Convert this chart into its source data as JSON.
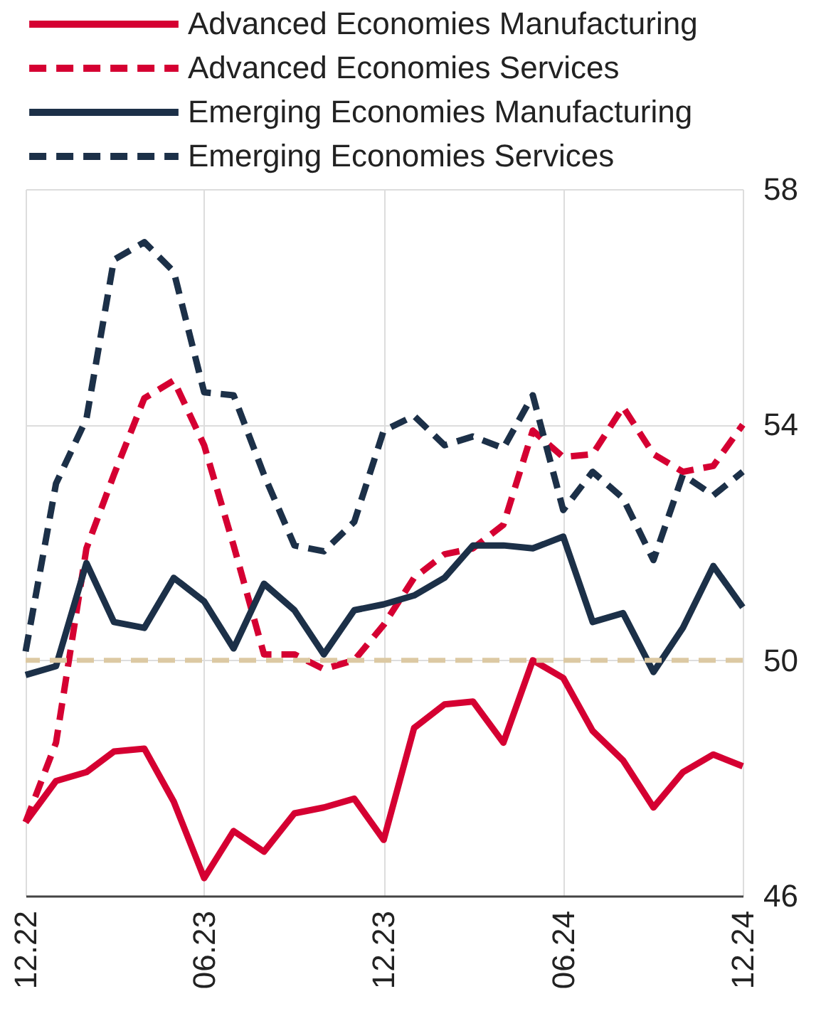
{
  "chart_data": {
    "type": "line",
    "x": [
      "2022-12",
      "2023-01",
      "2023-02",
      "2023-03",
      "2023-04",
      "2023-05",
      "2023-06",
      "2023-07",
      "2023-08",
      "2023-09",
      "2023-10",
      "2023-11",
      "2023-12",
      "2024-01",
      "2024-02",
      "2024-03",
      "2024-04",
      "2024-05",
      "2024-06",
      "2024-07",
      "2024-08",
      "2024-09",
      "2024-10",
      "2024-11",
      "2024-12"
    ],
    "series": [
      {
        "name": "Advanced Economies Manufacturing",
        "color": "#d50032",
        "line_style": "solid",
        "values": [
          47.25,
          47.95,
          48.1,
          48.45,
          48.5,
          47.6,
          46.3,
          47.1,
          46.75,
          47.4,
          47.5,
          47.65,
          46.95,
          48.85,
          49.25,
          49.3,
          48.6,
          50.0,
          49.7,
          48.8,
          48.3,
          47.5,
          48.1,
          48.4,
          48.2
        ]
      },
      {
        "name": "Advanced Economies Services",
        "color": "#d50032",
        "line_style": "dashed",
        "values": [
          47.25,
          48.6,
          51.9,
          53.15,
          54.45,
          54.75,
          53.65,
          51.95,
          50.1,
          50.1,
          49.85,
          50.0,
          50.6,
          51.4,
          51.8,
          51.9,
          52.3,
          53.9,
          53.45,
          53.5,
          54.3,
          53.5,
          53.2,
          53.3,
          54.0
        ]
      },
      {
        "name": "Emerging Economies Manufacturing",
        "color": "#1c3048",
        "line_style": "solid",
        "values": [
          49.75,
          49.9,
          51.65,
          50.65,
          50.55,
          51.4,
          51.0,
          50.2,
          51.3,
          50.85,
          50.1,
          50.85,
          50.95,
          51.1,
          51.4,
          51.95,
          51.95,
          51.9,
          52.1,
          50.65,
          50.8,
          49.8,
          50.55,
          51.6,
          50.9
        ]
      },
      {
        "name": "Emerging Economies Services",
        "color": "#1c3048",
        "line_style": "dashed",
        "values": [
          50.15,
          53.0,
          54.1,
          56.8,
          57.1,
          56.6,
          54.55,
          54.5,
          53.15,
          51.95,
          51.85,
          52.35,
          53.9,
          54.15,
          53.65,
          53.8,
          53.6,
          54.5,
          52.55,
          53.2,
          52.75,
          51.7,
          53.15,
          52.8,
          53.2
        ]
      }
    ],
    "xlim": [
      "2022-12",
      "2024-12"
    ],
    "xticks": [
      {
        "value": "2022-12",
        "label": "12.22"
      },
      {
        "value": "2023-06",
        "label": "06.23"
      },
      {
        "value": "2023-12",
        "label": "12.23"
      },
      {
        "value": "2024-06",
        "label": "06.24"
      },
      {
        "value": "2024-12",
        "label": "12.24"
      }
    ],
    "ylim": [
      46,
      58
    ],
    "yticks": [
      46,
      50,
      54,
      58
    ],
    "ref_lines": [
      {
        "axis": "y",
        "value": 50,
        "color": "#dcc9a3",
        "line_style": "dashed"
      }
    ],
    "grid": true,
    "legend": "top"
  }
}
